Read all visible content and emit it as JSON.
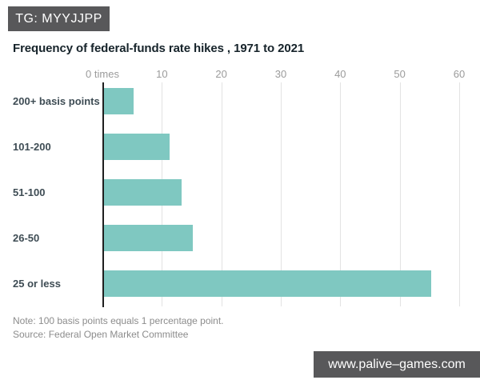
{
  "badge": {
    "label": "TG: MYYJJPP"
  },
  "watermark": {
    "label": "www.palive–games.com"
  },
  "colors": {
    "bar": "#7fc8c1",
    "badge_bg": "#58585a",
    "watermark_bg": "#58585a",
    "title_text": "#16232a",
    "category_text": "#3e4c54",
    "tick_text": "#9b9b9b",
    "note_text": "#8c8c8c",
    "gridline": "#e3e3e3",
    "axis": "#1f1f1f",
    "background": "#ffffff"
  },
  "chart_data": {
    "type": "bar",
    "orientation": "horizontal",
    "title": "Frequency of federal-funds rate hikes , 1971 to 2021",
    "categories": [
      "200+ basis points",
      "101-200",
      "51-100",
      "26-50",
      "25 or less"
    ],
    "values": [
      5,
      11,
      13,
      15,
      55
    ],
    "x_ticks": [
      {
        "value": 0,
        "label": "0 times"
      },
      {
        "value": 10,
        "label": "10"
      },
      {
        "value": 20,
        "label": "20"
      },
      {
        "value": 30,
        "label": "30"
      },
      {
        "value": 40,
        "label": "40"
      },
      {
        "value": 50,
        "label": "50"
      },
      {
        "value": 60,
        "label": "60"
      }
    ],
    "xlim": [
      0,
      62
    ],
    "grid": "vertical",
    "legend": "none",
    "note": "Note: 100 basis points equals 1 percentage point.",
    "source": "Source: Federal Open Market Committee"
  }
}
